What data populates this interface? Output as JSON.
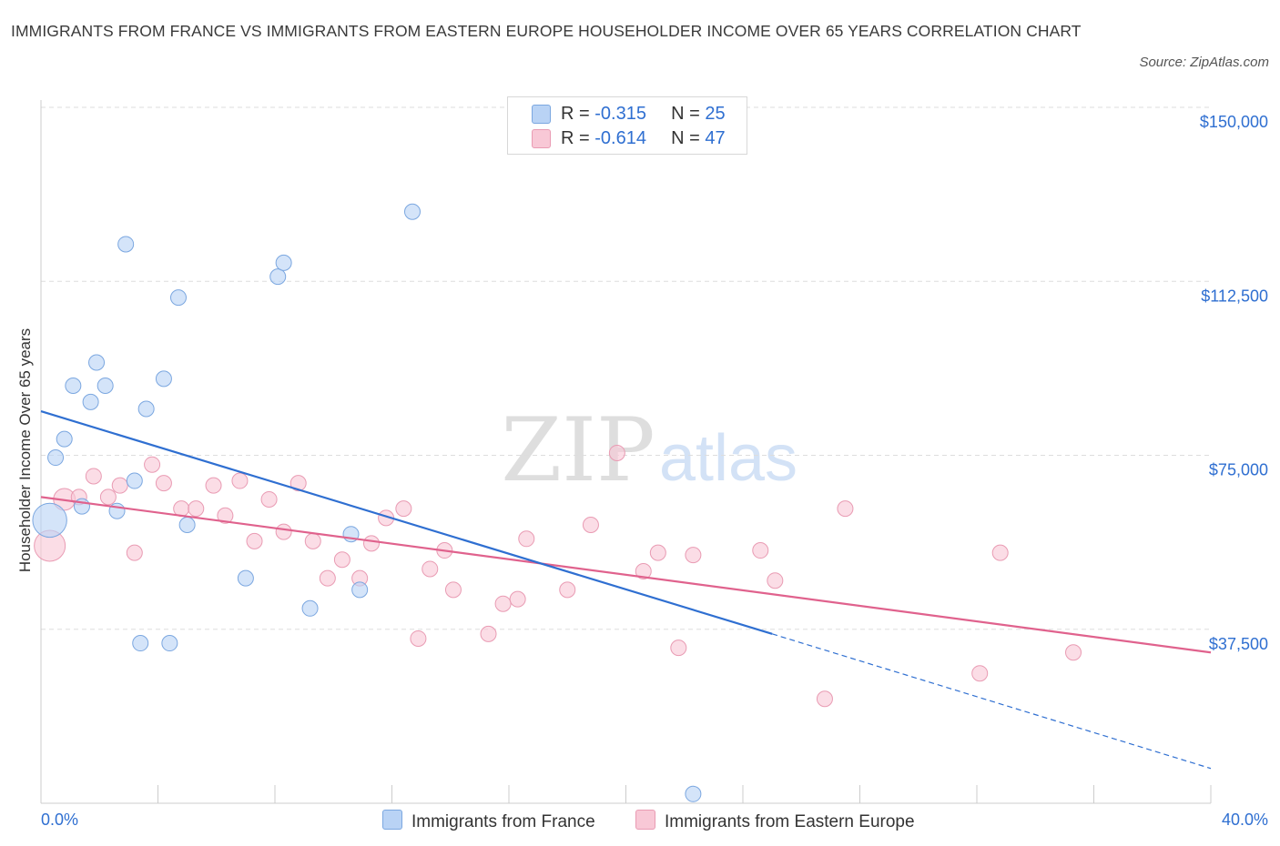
{
  "title": "IMMIGRANTS FROM FRANCE VS IMMIGRANTS FROM EASTERN EUROPE HOUSEHOLDER INCOME OVER 65 YEARS CORRELATION CHART",
  "source": "Source: ZipAtlas.com",
  "watermark": {
    "zip": "ZIP",
    "atlas": "atlas"
  },
  "legend": {
    "france": {
      "r_label": "R = ",
      "r_value": "-0.315",
      "n_label": "N = ",
      "n_value": "25"
    },
    "eastern": {
      "r_label": "R = ",
      "r_value": "-0.614",
      "n_label": "N = ",
      "n_value": "47"
    }
  },
  "colors": {
    "france_fill": "#b9d3f5",
    "france_stroke": "#7ba7e0",
    "france_line": "#2f6fd1",
    "eastern_fill": "#f8c8d6",
    "eastern_stroke": "#e99bb3",
    "eastern_line": "#e0628d",
    "tick_text": "#2f6fd1",
    "grid": "#dddddd"
  },
  "chart_data": {
    "type": "scatter",
    "title": "IMMIGRANTS FROM FRANCE VS IMMIGRANTS FROM EASTERN EUROPE HOUSEHOLDER INCOME OVER 65 YEARS CORRELATION CHART",
    "xlabel": "",
    "ylabel": "Householder Income Over 65 years",
    "xlim": [
      0,
      40
    ],
    "ylim": [
      0,
      150000
    ],
    "x_tick_labels": [
      "0.0%",
      "40.0%"
    ],
    "y_ticks": [
      {
        "value": 150000,
        "label": "$150,000"
      },
      {
        "value": 112500,
        "label": "$112,500"
      },
      {
        "value": 75000,
        "label": "$75,000"
      },
      {
        "value": 37500,
        "label": "$37,500"
      }
    ],
    "grid": "horizontal dashed",
    "legend_position": "top-center",
    "series": [
      {
        "name": "Immigrants from France",
        "trend": {
          "x0": 0,
          "y0": 84500,
          "x1": 25,
          "y1": 36500,
          "dash_to_x": 40,
          "dash_to_y": 7500
        },
        "points": [
          {
            "x": 0.3,
            "y": 61000,
            "s": 2.2
          },
          {
            "x": 0.5,
            "y": 74500
          },
          {
            "x": 0.8,
            "y": 78500
          },
          {
            "x": 1.1,
            "y": 90000
          },
          {
            "x": 1.4,
            "y": 64000
          },
          {
            "x": 1.7,
            "y": 86500
          },
          {
            "x": 1.9,
            "y": 95000
          },
          {
            "x": 2.2,
            "y": 90000
          },
          {
            "x": 2.6,
            "y": 63000
          },
          {
            "x": 2.9,
            "y": 120500
          },
          {
            "x": 3.2,
            "y": 69500
          },
          {
            "x": 3.4,
            "y": 34500
          },
          {
            "x": 3.6,
            "y": 85000
          },
          {
            "x": 4.2,
            "y": 91500
          },
          {
            "x": 4.4,
            "y": 34500
          },
          {
            "x": 4.7,
            "y": 109000
          },
          {
            "x": 5.0,
            "y": 60000
          },
          {
            "x": 7.0,
            "y": 48500
          },
          {
            "x": 8.1,
            "y": 113500
          },
          {
            "x": 8.3,
            "y": 116500
          },
          {
            "x": 9.2,
            "y": 42000
          },
          {
            "x": 10.6,
            "y": 58000
          },
          {
            "x": 10.9,
            "y": 46000
          },
          {
            "x": 12.7,
            "y": 127500
          },
          {
            "x": 22.3,
            "y": 2000
          }
        ]
      },
      {
        "name": "Immigrants from Eastern Europe",
        "trend": {
          "x0": 0,
          "y0": 66000,
          "x1": 40,
          "y1": 32500
        },
        "points": [
          {
            "x": 0.3,
            "y": 55500,
            "s": 2.0
          },
          {
            "x": 0.8,
            "y": 65500,
            "s": 1.4
          },
          {
            "x": 1.3,
            "y": 66000
          },
          {
            "x": 1.8,
            "y": 70500
          },
          {
            "x": 2.3,
            "y": 66000
          },
          {
            "x": 2.7,
            "y": 68500
          },
          {
            "x": 3.2,
            "y": 54000
          },
          {
            "x": 3.8,
            "y": 73000
          },
          {
            "x": 4.2,
            "y": 69000
          },
          {
            "x": 4.8,
            "y": 63500
          },
          {
            "x": 5.3,
            "y": 63500
          },
          {
            "x": 5.9,
            "y": 68500
          },
          {
            "x": 6.3,
            "y": 62000
          },
          {
            "x": 6.8,
            "y": 69500
          },
          {
            "x": 7.3,
            "y": 56500
          },
          {
            "x": 7.8,
            "y": 65500
          },
          {
            "x": 8.3,
            "y": 58500
          },
          {
            "x": 8.8,
            "y": 69000
          },
          {
            "x": 9.3,
            "y": 56500
          },
          {
            "x": 9.8,
            "y": 48500
          },
          {
            "x": 10.3,
            "y": 52500
          },
          {
            "x": 10.9,
            "y": 48500
          },
          {
            "x": 11.3,
            "y": 56000
          },
          {
            "x": 11.8,
            "y": 61500
          },
          {
            "x": 12.4,
            "y": 63500
          },
          {
            "x": 12.9,
            "y": 35500
          },
          {
            "x": 13.3,
            "y": 50500
          },
          {
            "x": 13.8,
            "y": 54500
          },
          {
            "x": 14.1,
            "y": 46000
          },
          {
            "x": 15.3,
            "y": 36500
          },
          {
            "x": 15.8,
            "y": 43000
          },
          {
            "x": 16.3,
            "y": 44000
          },
          {
            "x": 16.6,
            "y": 57000
          },
          {
            "x": 18.0,
            "y": 46000
          },
          {
            "x": 18.8,
            "y": 60000
          },
          {
            "x": 19.7,
            "y": 75500
          },
          {
            "x": 20.6,
            "y": 50000
          },
          {
            "x": 21.1,
            "y": 54000
          },
          {
            "x": 21.8,
            "y": 33500
          },
          {
            "x": 22.3,
            "y": 53500
          },
          {
            "x": 24.6,
            "y": 54500
          },
          {
            "x": 25.1,
            "y": 48000
          },
          {
            "x": 26.8,
            "y": 22500
          },
          {
            "x": 27.5,
            "y": 63500
          },
          {
            "x": 32.1,
            "y": 28000
          },
          {
            "x": 32.8,
            "y": 54000
          },
          {
            "x": 35.3,
            "y": 32500
          }
        ]
      }
    ]
  },
  "bottom_legend": {
    "france": "Immigrants from France",
    "eastern": "Immigrants from Eastern Europe"
  }
}
